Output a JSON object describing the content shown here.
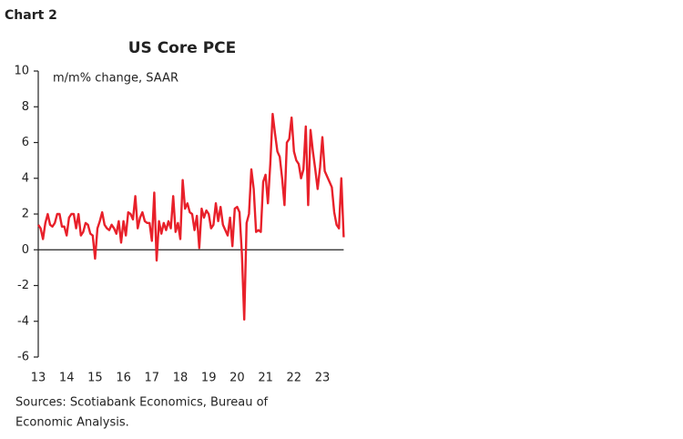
{
  "chart_label": "Chart 2",
  "chart_data": {
    "type": "line",
    "title": "US Core PCE",
    "subtitle": "m/m% change, SAAR",
    "categories": [
      "13",
      null,
      null,
      null,
      null,
      null,
      null,
      null,
      null,
      null,
      null,
      null,
      "14",
      null,
      null,
      null,
      null,
      null,
      null,
      null,
      null,
      null,
      null,
      null,
      "15",
      null,
      null,
      null,
      null,
      null,
      null,
      null,
      null,
      null,
      null,
      null,
      "16",
      null,
      null,
      null,
      null,
      null,
      null,
      null,
      null,
      null,
      null,
      null,
      "17",
      null,
      null,
      null,
      null,
      null,
      null,
      null,
      null,
      null,
      null,
      null,
      "18",
      null,
      null,
      null,
      null,
      null,
      null,
      null,
      null,
      null,
      null,
      null,
      "19",
      null,
      null,
      null,
      null,
      null,
      null,
      null,
      null,
      null,
      null,
      null,
      "20",
      null,
      null,
      null,
      null,
      null,
      null,
      null,
      null,
      null,
      null,
      null,
      "21",
      null,
      null,
      null,
      null,
      null,
      null,
      null,
      null,
      null,
      null,
      null,
      "22",
      null,
      null,
      null,
      null,
      null,
      null,
      null,
      null,
      null,
      null,
      null,
      "23",
      null,
      null,
      null,
      null,
      null,
      null,
      null,
      null,
      null
    ],
    "values": [
      1.4,
      1.2,
      0.6,
      1.5,
      2.0,
      1.4,
      1.3,
      1.5,
      2.0,
      2.0,
      1.3,
      1.3,
      0.8,
      1.8,
      2.0,
      2.0,
      1.2,
      2.0,
      0.8,
      1.0,
      1.5,
      1.4,
      0.9,
      0.8,
      -0.5,
      1.2,
      1.6,
      2.1,
      1.4,
      1.2,
      1.1,
      1.4,
      1.2,
      0.9,
      1.6,
      0.4,
      1.6,
      0.8,
      2.1,
      2.0,
      1.7,
      3.0,
      1.2,
      1.8,
      2.1,
      1.6,
      1.5,
      1.5,
      0.5,
      3.2,
      -0.6,
      1.6,
      0.9,
      1.5,
      1.1,
      1.6,
      1.2,
      3.0,
      1.0,
      1.5,
      0.6,
      3.9,
      2.3,
      2.6,
      2.1,
      2.0,
      1.1,
      1.9,
      0.1,
      2.3,
      1.8,
      2.2,
      2.0,
      1.2,
      1.4,
      2.6,
      1.6,
      2.4,
      1.4,
      1.1,
      0.8,
      1.8,
      0.2,
      2.3,
      2.4,
      2.1,
      -0.2,
      -3.9,
      1.5,
      2.0,
      4.5,
      3.4,
      1.0,
      1.1,
      1.0,
      3.8,
      4.2,
      2.6,
      4.8,
      7.6,
      6.5,
      5.5,
      5.2,
      4.0,
      2.5,
      6.0,
      6.2,
      7.4,
      5.5,
      5.0,
      4.8,
      4.0,
      4.5,
      6.9,
      2.5,
      6.7,
      5.5,
      4.5,
      3.4,
      4.6,
      6.3,
      4.4,
      4.1,
      3.8,
      3.5,
      2.1,
      1.4,
      1.2,
      4.0,
      0.7
    ],
    "color": "#e8202a",
    "ylim": [
      -6,
      10
    ],
    "yticks": [
      -6,
      -4,
      -2,
      0,
      2,
      4,
      6,
      8,
      10
    ],
    "source": [
      "Sources: Scotiabank Economics, Bureau of",
      "Economic Analysis."
    ]
  }
}
